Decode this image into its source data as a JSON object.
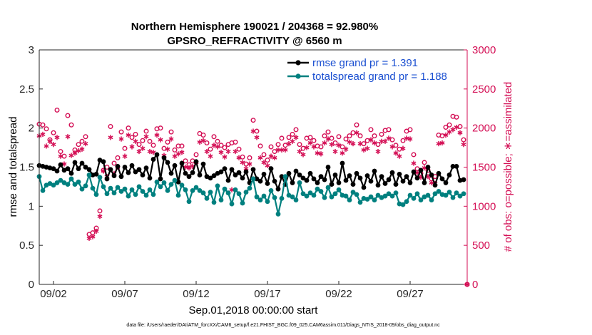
{
  "chart_data": {
    "type": "line",
    "title": "Northern Hemisphere 190021 / 204368 = 92.980%",
    "subtitle": "GPSRO_REFRACTIVITY @ 6560 m",
    "xlabel": "Sep.01,2018 00:00:00 start",
    "ylabel": "rmse and totalspread",
    "ylabel_right": "# of obs: o=possible; ∗=assimilated",
    "footnote": "data file: /Users/raeder/DAI/ATM_forcXX/CAM6_setup/f.e21.FHIST_BGC.f09_025.CAM6assim.011/Diags_NTrS_2018-09/obs_diag_output.nc",
    "x_ticks": [
      {
        "value": 2,
        "label": "09/02"
      },
      {
        "value": 7,
        "label": "09/07"
      },
      {
        "value": 12,
        "label": "09/12"
      },
      {
        "value": 17,
        "label": "09/17"
      },
      {
        "value": 22,
        "label": "09/22"
      },
      {
        "value": 27,
        "label": "09/27"
      }
    ],
    "xlim": [
      1,
      31
    ],
    "ylim": [
      0,
      3
    ],
    "ylim_right": [
      0,
      3000
    ],
    "y_ticks": [
      {
        "value": 0,
        "label": "0"
      },
      {
        "value": 0.5,
        "label": "0.5"
      },
      {
        "value": 1,
        "label": "1"
      },
      {
        "value": 1.5,
        "label": "1.5"
      },
      {
        "value": 2,
        "label": "2"
      },
      {
        "value": 2.5,
        "label": "2.5"
      },
      {
        "value": 3,
        "label": "3"
      }
    ],
    "y_ticks_right": [
      {
        "value": 0,
        "label": "0"
      },
      {
        "value": 500,
        "label": "500"
      },
      {
        "value": 1000,
        "label": "1000"
      },
      {
        "value": 1500,
        "label": "1500"
      },
      {
        "value": 2000,
        "label": "2000"
      },
      {
        "value": 2500,
        "label": "2500"
      },
      {
        "value": 3000,
        "label": "3000"
      }
    ],
    "legend": [
      {
        "label": "rmse grand pr = 1.391",
        "color": "#000000"
      },
      {
        "label": "totalspread grand pr = 1.188",
        "color": "#00807f"
      }
    ],
    "series": [
      {
        "name": "rmse",
        "color": "#000000",
        "x": [
          1.0,
          1.25,
          1.5,
          1.75,
          2.0,
          2.25,
          2.5,
          2.75,
          3.0,
          3.25,
          3.5,
          3.75,
          4.0,
          4.25,
          4.5,
          4.75,
          5.0,
          5.25,
          5.5,
          5.75,
          6.0,
          6.25,
          6.5,
          6.75,
          7.0,
          7.25,
          7.5,
          7.75,
          8.0,
          8.25,
          8.5,
          8.75,
          9.0,
          9.25,
          9.5,
          9.75,
          10.0,
          10.25,
          10.5,
          10.75,
          11.0,
          11.25,
          11.5,
          11.75,
          12.0,
          12.25,
          12.5,
          12.75,
          13.0,
          13.25,
          13.5,
          13.75,
          14.0,
          14.25,
          14.5,
          14.75,
          15.0,
          15.25,
          15.5,
          15.75,
          16.0,
          16.25,
          16.5,
          16.75,
          17.0,
          17.25,
          17.5,
          17.75,
          18.0,
          18.25,
          18.5,
          18.75,
          19.0,
          19.25,
          19.5,
          19.75,
          20.0,
          20.25,
          20.5,
          20.75,
          21.0,
          21.25,
          21.5,
          21.75,
          22.0,
          22.25,
          22.5,
          22.75,
          23.0,
          23.25,
          23.5,
          23.75,
          24.0,
          24.25,
          24.5,
          24.75,
          25.0,
          25.25,
          25.5,
          25.75,
          26.0,
          26.25,
          26.5,
          26.75,
          27.0,
          27.25,
          27.5,
          27.75,
          28.0,
          28.25,
          28.5,
          28.75,
          29.0,
          29.25,
          29.5,
          29.75,
          30.0,
          30.25,
          30.5,
          30.75
        ],
        "y": [
          1.52,
          1.51,
          1.5,
          1.49,
          1.48,
          1.45,
          1.53,
          1.46,
          1.48,
          1.42,
          1.56,
          1.48,
          1.55,
          1.5,
          1.47,
          1.4,
          1.41,
          1.59,
          1.57,
          1.35,
          1.47,
          1.39,
          1.51,
          1.38,
          1.5,
          1.43,
          1.52,
          1.44,
          1.47,
          1.4,
          1.49,
          1.36,
          1.6,
          1.66,
          1.35,
          1.62,
          1.56,
          1.42,
          1.52,
          1.31,
          1.55,
          1.42,
          1.38,
          1.43,
          1.57,
          1.4,
          1.54,
          1.38,
          1.36,
          1.39,
          1.42,
          1.44,
          1.48,
          1.33,
          1.47,
          1.4,
          1.43,
          1.36,
          1.44,
          1.3,
          1.47,
          1.35,
          1.32,
          1.41,
          1.29,
          1.48,
          1.32,
          1.22,
          1.38,
          1.28,
          1.42,
          1.3,
          1.45,
          1.4,
          1.36,
          1.33,
          1.42,
          1.35,
          1.3,
          1.38,
          1.34,
          1.5,
          1.28,
          1.4,
          1.3,
          1.55,
          1.33,
          1.39,
          1.28,
          1.42,
          1.36,
          1.24,
          1.39,
          1.32,
          1.45,
          1.27,
          1.38,
          1.29,
          1.34,
          1.43,
          1.28,
          1.41,
          1.32,
          1.38,
          1.3,
          1.44,
          1.36,
          1.46,
          1.3,
          1.5,
          1.4,
          1.27,
          1.42,
          1.35,
          1.3,
          1.4,
          1.51,
          1.51,
          1.33,
          1.34
        ]
      },
      {
        "name": "totalspread",
        "color": "#00807f",
        "x": [
          1.0,
          1.25,
          1.5,
          1.75,
          2.0,
          2.25,
          2.5,
          2.75,
          3.0,
          3.25,
          3.5,
          3.75,
          4.0,
          4.25,
          4.5,
          4.75,
          5.0,
          5.25,
          5.5,
          5.75,
          6.0,
          6.25,
          6.5,
          6.75,
          7.0,
          7.25,
          7.5,
          7.75,
          8.0,
          8.25,
          8.5,
          8.75,
          9.0,
          9.25,
          9.5,
          9.75,
          10.0,
          10.25,
          10.5,
          10.75,
          11.0,
          11.25,
          11.5,
          11.75,
          12.0,
          12.25,
          12.5,
          12.75,
          13.0,
          13.25,
          13.5,
          13.75,
          14.0,
          14.25,
          14.5,
          14.75,
          15.0,
          15.25,
          15.5,
          15.75,
          16.0,
          16.25,
          16.5,
          16.75,
          17.0,
          17.25,
          17.5,
          17.75,
          18.0,
          18.25,
          18.5,
          18.75,
          19.0,
          19.25,
          19.5,
          19.75,
          20.0,
          20.25,
          20.5,
          20.75,
          21.0,
          21.25,
          21.5,
          21.75,
          22.0,
          22.25,
          22.5,
          22.75,
          23.0,
          23.25,
          23.5,
          23.75,
          24.0,
          24.25,
          24.5,
          24.75,
          25.0,
          25.25,
          25.5,
          25.75,
          26.0,
          26.25,
          26.5,
          26.75,
          27.0,
          27.25,
          27.5,
          27.75,
          28.0,
          28.25,
          28.5,
          28.75,
          29.0,
          29.25,
          29.5,
          29.75,
          30.0,
          30.25,
          30.5,
          30.75
        ],
        "y": [
          1.38,
          1.2,
          1.27,
          1.29,
          1.27,
          1.3,
          1.33,
          1.3,
          1.28,
          1.35,
          1.28,
          1.31,
          1.22,
          1.26,
          1.4,
          1.23,
          1.15,
          1.37,
          1.25,
          1.16,
          1.23,
          1.17,
          1.24,
          1.19,
          1.22,
          1.13,
          1.21,
          1.15,
          1.25,
          1.19,
          1.14,
          1.21,
          1.15,
          1.31,
          1.25,
          1.3,
          1.2,
          1.28,
          1.33,
          1.14,
          1.27,
          1.21,
          1.06,
          1.2,
          1.24,
          1.2,
          1.17,
          1.1,
          1.18,
          1.05,
          1.26,
          1.08,
          1.22,
          1.17,
          1.03,
          1.21,
          1.16,
          1.04,
          1.18,
          1.23,
          1.35,
          1.12,
          1.08,
          1.13,
          1.06,
          1.2,
          1.11,
          0.9,
          1.1,
          1.38,
          1.14,
          1.12,
          1.08,
          1.3,
          1.16,
          1.13,
          1.17,
          1.14,
          1.22,
          1.19,
          1.11,
          1.24,
          1.12,
          1.16,
          1.21,
          1.14,
          1.13,
          1.08,
          1.18,
          1.15,
          1.05,
          1.1,
          1.09,
          1.12,
          1.08,
          1.14,
          1.11,
          1.13,
          1.16,
          1.13,
          1.17,
          1.03,
          1.02,
          1.06,
          1.14,
          1.1,
          1.16,
          1.08,
          1.12,
          1.14,
          1.08,
          1.16,
          1.19,
          1.15,
          1.14,
          1.18,
          1.11,
          1.17,
          1.13,
          1.16
        ]
      },
      {
        "name": "possible",
        "marker": "circle",
        "color": "#d40f55",
        "x": [
          1.0,
          1.25,
          1.5,
          1.75,
          2.0,
          2.25,
          2.5,
          2.75,
          3.0,
          3.25,
          3.5,
          3.75,
          4.0,
          4.25,
          4.5,
          4.75,
          5.0,
          5.25,
          5.5,
          5.75,
          6.0,
          6.25,
          6.5,
          6.75,
          7.0,
          7.25,
          7.5,
          7.75,
          8.0,
          8.25,
          8.5,
          8.75,
          9.0,
          9.25,
          9.5,
          9.75,
          10.0,
          10.25,
          10.5,
          10.75,
          11.0,
          11.25,
          11.5,
          11.75,
          12.0,
          12.25,
          12.5,
          12.75,
          13.0,
          13.25,
          13.5,
          13.75,
          14.0,
          14.25,
          14.5,
          14.75,
          15.0,
          15.25,
          15.5,
          15.75,
          16.0,
          16.25,
          16.5,
          16.75,
          17.0,
          17.25,
          17.5,
          17.75,
          18.0,
          18.25,
          18.5,
          18.75,
          19.0,
          19.25,
          19.5,
          19.75,
          20.0,
          20.25,
          20.5,
          20.75,
          21.0,
          21.25,
          21.5,
          21.75,
          22.0,
          22.25,
          22.5,
          22.75,
          23.0,
          23.25,
          23.5,
          23.75,
          24.0,
          24.25,
          24.5,
          24.75,
          25.0,
          25.25,
          25.5,
          25.75,
          26.0,
          26.25,
          26.5,
          26.75,
          27.0,
          27.25,
          27.5,
          27.75,
          28.0,
          28.25,
          28.5,
          28.75,
          29.0,
          29.25,
          29.5,
          29.75,
          30.0,
          30.25,
          30.5,
          30.75,
          31.0
        ],
        "y": [
          2050,
          2040,
          1990,
          1850,
          1940,
          2230,
          1700,
          1640,
          2160,
          2040,
          1720,
          1790,
          1830,
          1890,
          640,
          660,
          720,
          940,
          1460,
          1500,
          2020,
          1550,
          1620,
          1950,
          1740,
          2000,
          1880,
          1920,
          1790,
          1840,
          1960,
          1830,
          1780,
          1990,
          2000,
          1740,
          1820,
          1950,
          1720,
          1770,
          1770,
          1580,
          1530,
          1580,
          1660,
          1930,
          1910,
          1810,
          1730,
          1890,
          1830,
          1780,
          1750,
          1790,
          1810,
          1820,
          1730,
          1630,
          1540,
          1620,
          2100,
          1960,
          1770,
          1660,
          1590,
          1760,
          1700,
          1790,
          1870,
          1780,
          1880,
          1920,
          1980,
          1790,
          1740,
          1870,
          1880,
          1840,
          1770,
          1760,
          1900,
          1950,
          1870,
          1810,
          1890,
          1760,
          1860,
          1900,
          1940,
          2040,
          1900,
          1800,
          1840,
          1980,
          1900,
          1790,
          1920,
          1970,
          1980,
          1850,
          1780,
          1730,
          1840,
          1960,
          1980,
          1660,
          1480,
          1420,
          1560,
          1460,
          1350,
          1380,
          1910,
          1900,
          2010,
          2040,
          2150,
          2140,
          2020,
          1850,
          0
        ]
      },
      {
        "name": "assimilated",
        "marker": "asterisk",
        "color": "#d40f55",
        "x": [
          1.0,
          1.25,
          1.5,
          1.75,
          2.0,
          2.25,
          2.5,
          2.75,
          3.0,
          3.25,
          3.5,
          3.75,
          4.0,
          4.25,
          4.5,
          4.75,
          5.0,
          5.25,
          5.5,
          5.75,
          6.0,
          6.25,
          6.5,
          6.75,
          7.0,
          7.25,
          7.5,
          7.75,
          8.0,
          8.25,
          8.5,
          8.75,
          9.0,
          9.25,
          9.5,
          9.75,
          10.0,
          10.25,
          10.5,
          10.75,
          11.0,
          11.25,
          11.5,
          11.75,
          12.0,
          12.25,
          12.5,
          12.75,
          13.0,
          13.25,
          13.5,
          13.75,
          14.0,
          14.25,
          14.5,
          14.75,
          15.0,
          15.25,
          15.5,
          15.75,
          16.0,
          16.25,
          16.5,
          16.75,
          17.0,
          17.25,
          17.5,
          17.75,
          18.0,
          18.25,
          18.5,
          18.75,
          19.0,
          19.25,
          19.5,
          19.75,
          20.0,
          20.25,
          20.5,
          20.75,
          21.0,
          21.25,
          21.5,
          21.75,
          22.0,
          22.25,
          22.5,
          22.75,
          23.0,
          23.25,
          23.5,
          23.75,
          24.0,
          24.25,
          24.5,
          24.75,
          25.0,
          25.25,
          25.5,
          25.75,
          26.0,
          26.25,
          26.5,
          26.75,
          27.0,
          27.25,
          27.5,
          27.75,
          28.0,
          28.25,
          28.5,
          28.75,
          29.0,
          29.25,
          29.5,
          29.75,
          30.0,
          30.25,
          30.5,
          30.75,
          31.0
        ],
        "y": [
          1900,
          1920,
          1770,
          1830,
          1790,
          1880,
          1640,
          1540,
          1890,
          1650,
          1680,
          1710,
          1730,
          1800,
          590,
          610,
          680,
          870,
          1450,
          1380,
          1880,
          1420,
          1500,
          1860,
          1640,
          1910,
          1760,
          1830,
          1700,
          1740,
          1890,
          1700,
          1690,
          1910,
          1850,
          1650,
          1730,
          1860,
          1640,
          1670,
          1690,
          1500,
          1490,
          1510,
          1560,
          1820,
          1840,
          1700,
          1640,
          1780,
          1760,
          1690,
          1630,
          1700,
          1210,
          1700,
          1620,
          1560,
          1480,
          1540,
          1960,
          1880,
          1620,
          1560,
          1520,
          1640,
          1620,
          1720,
          1720,
          1720,
          1800,
          1830,
          1880,
          1700,
          1660,
          1750,
          1810,
          1760,
          1680,
          1670,
          1810,
          1860,
          1790,
          1700,
          1780,
          1680,
          1730,
          1820,
          1800,
          1940,
          1800,
          1720,
          1740,
          1850,
          1810,
          1700,
          1830,
          1830,
          1870,
          1760,
          1680,
          1640,
          1740,
          1870,
          1860,
          1550,
          1430,
          1370,
          1490,
          1380,
          1300,
          1290,
          1800,
          1810,
          1910,
          1950,
          1980,
          2010,
          1940,
          1790,
          0
        ]
      }
    ]
  }
}
